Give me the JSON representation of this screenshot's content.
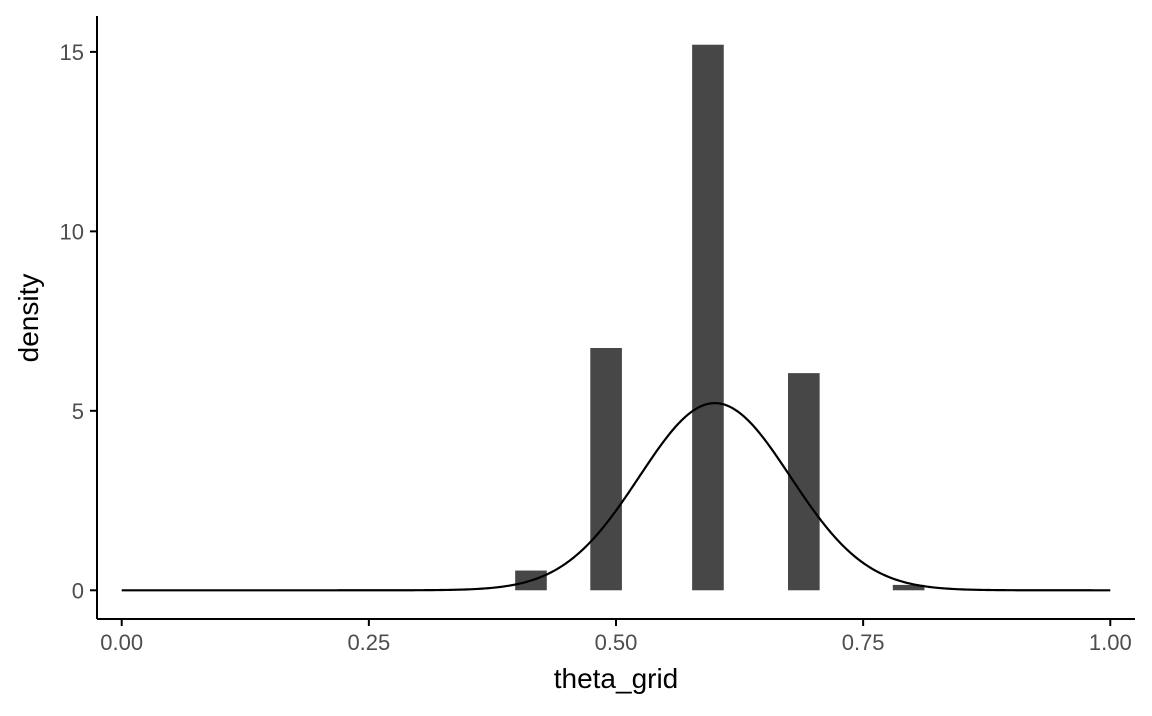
{
  "chart_data": {
    "type": "bar",
    "title": "",
    "xlabel": "theta_grid",
    "ylabel": "density",
    "xlim": [
      -0.025,
      1.025
    ],
    "ylim": [
      -0.8,
      16
    ],
    "xticks": [
      0.0,
      0.25,
      0.5,
      0.75,
      1.0
    ],
    "xtick_labels": [
      "0.00",
      "0.25",
      "0.50",
      "0.75",
      "1.00"
    ],
    "yticks": [
      0,
      5,
      10,
      15
    ],
    "ytick_labels": [
      "0",
      "5",
      "10",
      "15"
    ],
    "grid": false,
    "legend": "none",
    "bar_width": 0.032,
    "histogram": {
      "x": [
        0.414,
        0.49,
        0.593,
        0.69,
        0.796
      ],
      "values": [
        0.55,
        6.75,
        15.2,
        6.05,
        0.15
      ]
    },
    "density_curve": {
      "mean": 0.6,
      "sd": 0.0765,
      "x_range": [
        0.0,
        1.0
      ]
    },
    "colors": {
      "bars": "#474747",
      "curve": "#000000",
      "axis": "#000000",
      "tick_label": "#4d4d4d",
      "axis_title": "#000000"
    }
  }
}
